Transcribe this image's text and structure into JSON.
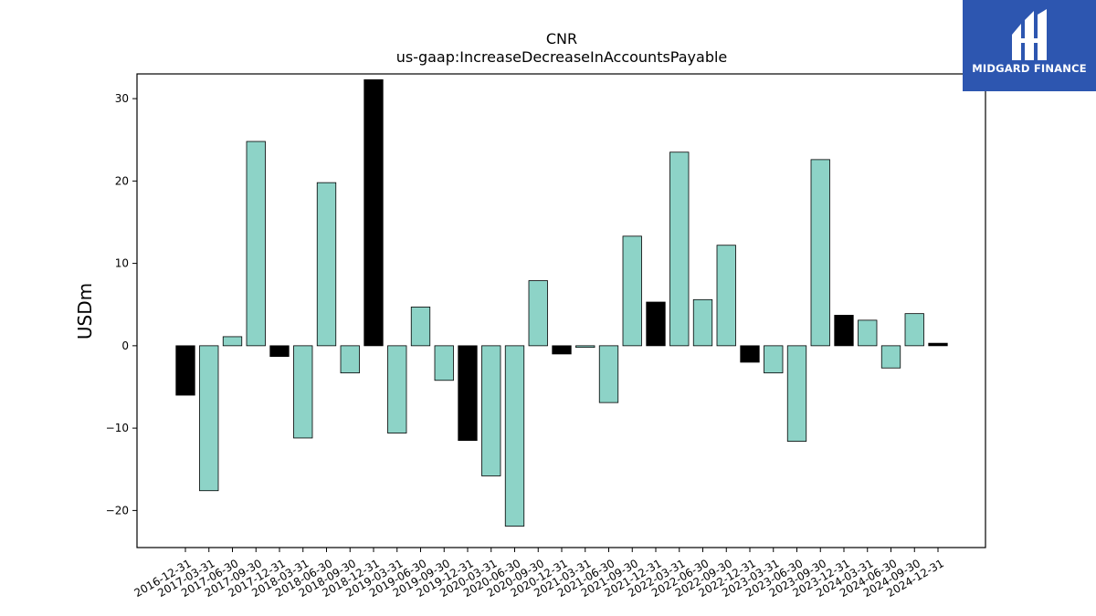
{
  "brand": {
    "name": "MIDGARD FINANCE",
    "bg_color": "#2d56b0"
  },
  "chart_data": {
    "type": "bar",
    "title": "CNR",
    "subtitle": "us-gaap:IncreaseDecreaseInAccountsPayable",
    "xlabel": "",
    "ylabel": "USDm",
    "ylim": [
      -24.5,
      33
    ],
    "yticks": [
      -20,
      -10,
      0,
      10,
      20,
      30
    ],
    "grid": false,
    "colors": {
      "q4": "#000000",
      "other": "#8dd3c7",
      "edge": "#000000"
    },
    "categories": [
      "2016-12-31",
      "2017-03-31",
      "2017-06-30",
      "2017-09-30",
      "2017-12-31",
      "2018-03-31",
      "2018-06-30",
      "2018-09-30",
      "2018-12-31",
      "2019-03-31",
      "2019-06-30",
      "2019-09-30",
      "2019-12-31",
      "2020-03-31",
      "2020-06-30",
      "2020-09-30",
      "2020-12-31",
      "2021-03-31",
      "2021-06-30",
      "2021-09-30",
      "2021-12-31",
      "2022-03-31",
      "2022-06-30",
      "2022-09-30",
      "2022-12-31",
      "2023-03-31",
      "2023-06-30",
      "2023-09-30",
      "2023-12-31",
      "2024-03-31",
      "2024-06-30",
      "2024-09-30",
      "2024-12-31"
    ],
    "values": [
      -6.0,
      -17.6,
      1.1,
      24.8,
      -1.3,
      -11.2,
      19.8,
      -3.3,
      32.3,
      -10.6,
      4.7,
      -4.2,
      -11.5,
      -15.8,
      -21.9,
      7.9,
      -1.0,
      -0.2,
      -6.9,
      13.3,
      5.3,
      23.5,
      5.6,
      12.2,
      -2.0,
      -3.3,
      -11.6,
      22.6,
      3.7,
      3.1,
      -2.7,
      3.9,
      0.3
    ]
  }
}
